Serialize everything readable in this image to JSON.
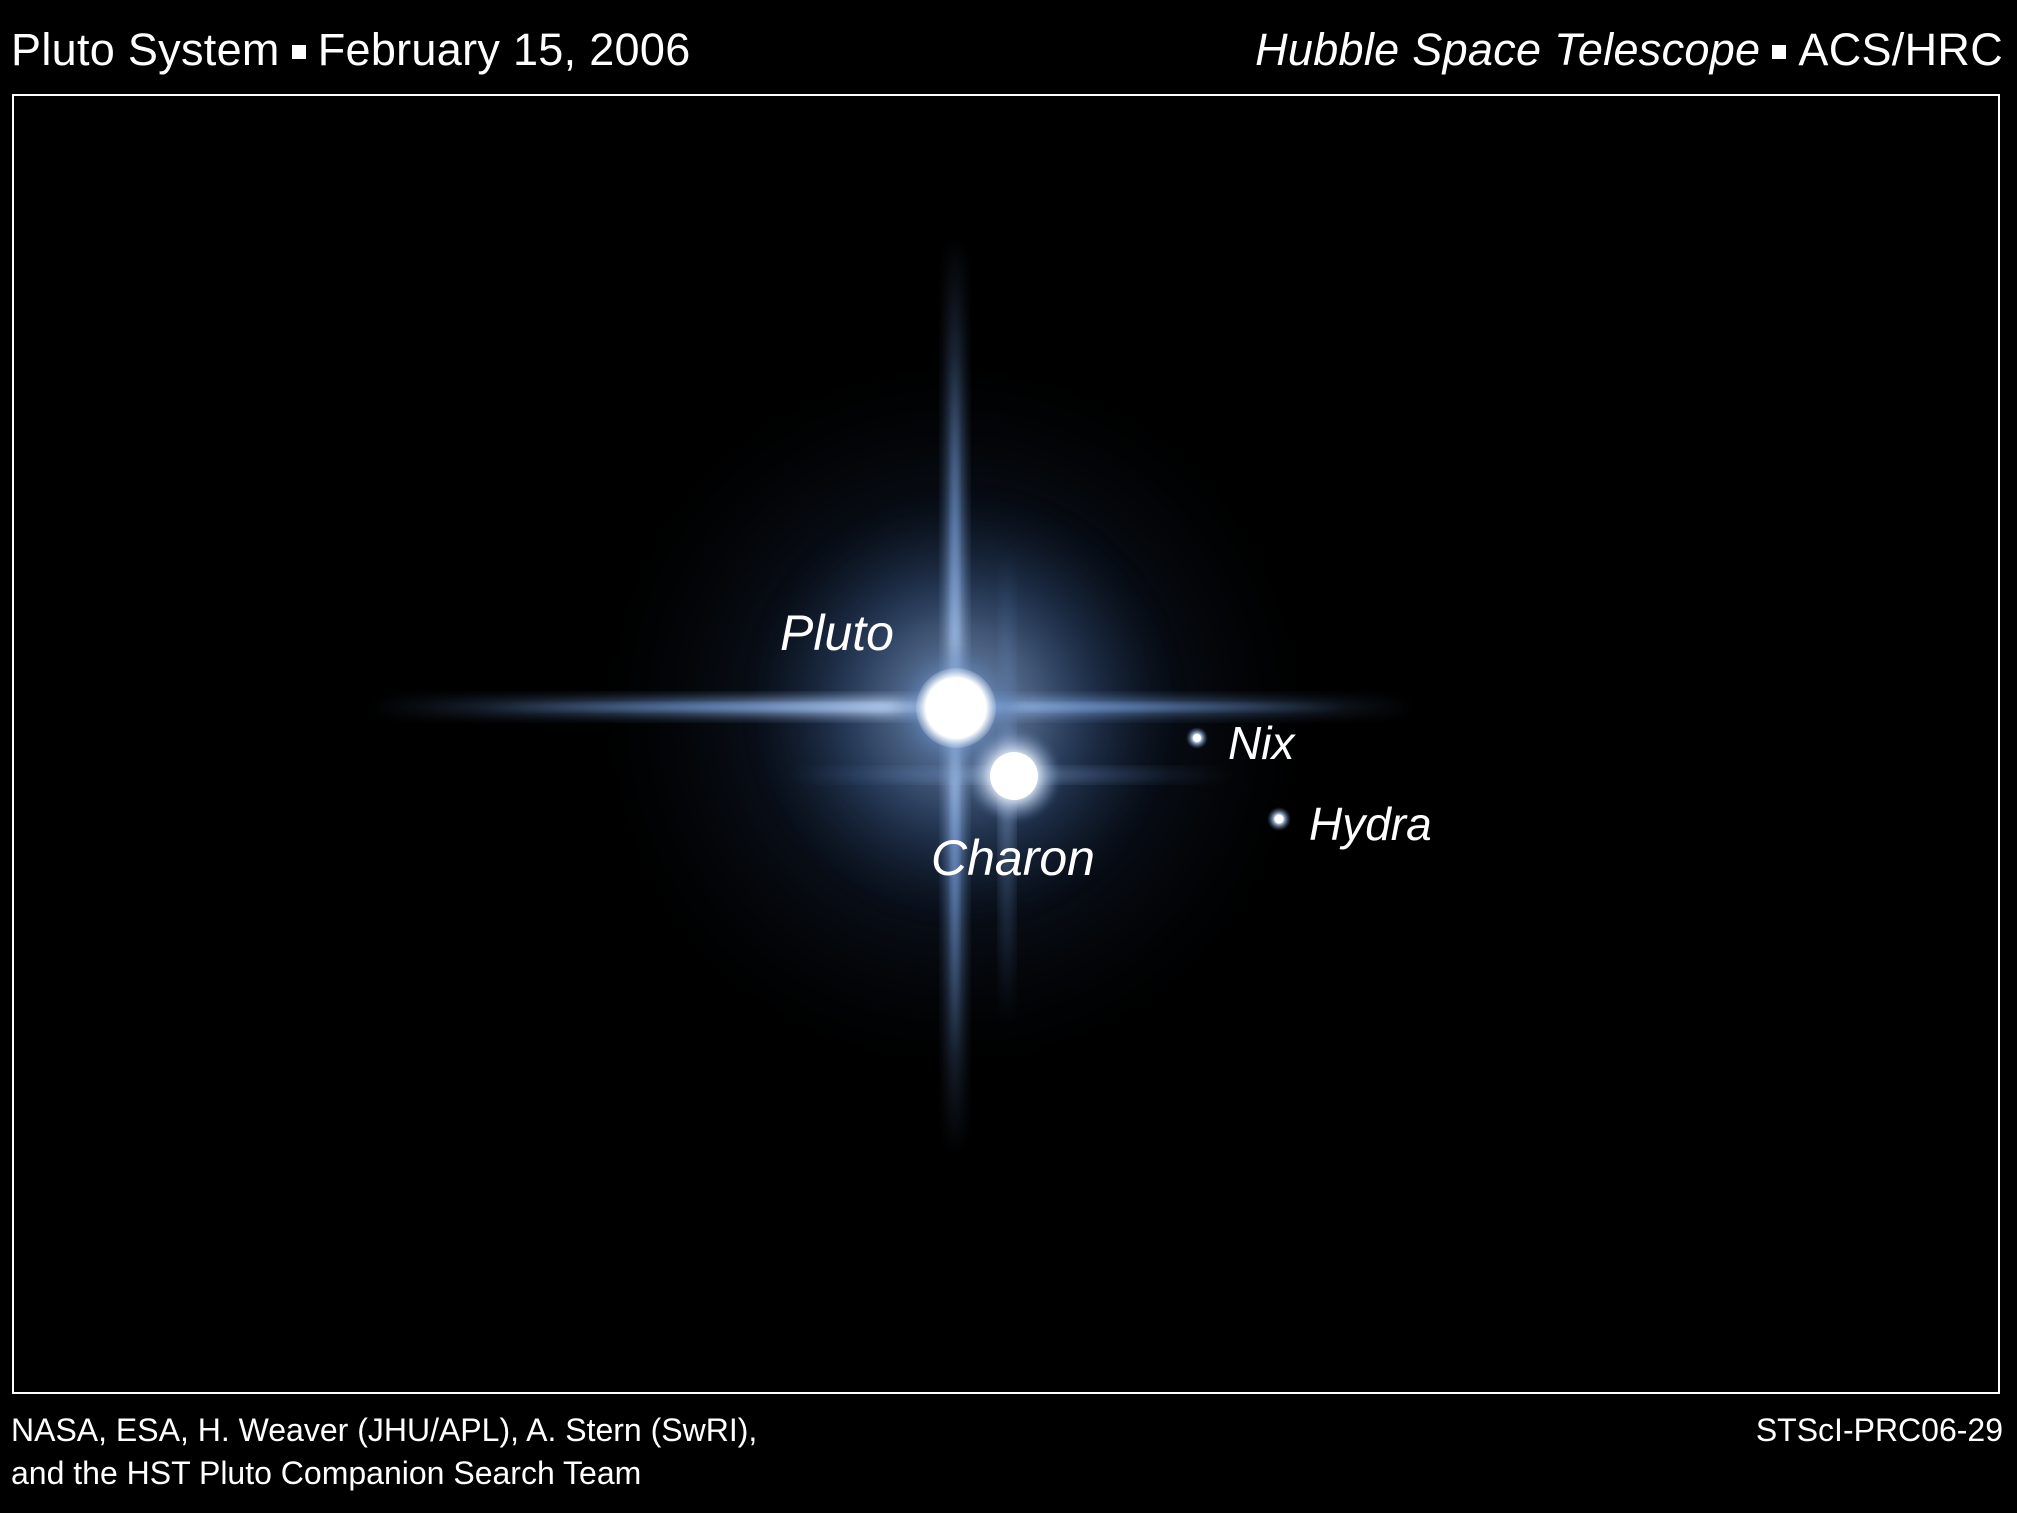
{
  "header": {
    "title": "Pluto System",
    "date": "February 15, 2006",
    "telescope": "Hubble Space Telescope",
    "instrument": "ACS/HRC"
  },
  "image": {
    "labels": {
      "pluto": "Pluto",
      "charon": "Charon",
      "nix": "Nix",
      "hydra": "Hydra"
    },
    "colors": {
      "background": "#000000",
      "glow": "#5b86c4",
      "core": "#ffffff"
    }
  },
  "footer": {
    "credit_line1": "NASA, ESA, H. Weaver (JHU/APL), A. Stern (SwRI),",
    "credit_line2": "and the HST Pluto Companion Search Team",
    "release_id": "STScI-PRC06-29"
  }
}
